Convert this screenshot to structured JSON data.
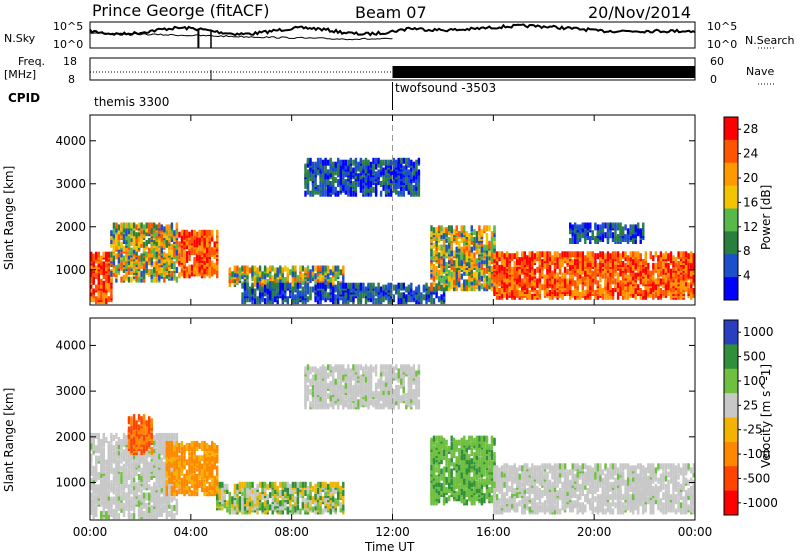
{
  "header": {
    "station": "Prince George (fitACF)",
    "beam": "Beam 07",
    "date": "20/Nov/2014"
  },
  "top_panels": {
    "nsky_label": "N.Sky",
    "nsearch_label": "N.Search",
    "nsky_ticks": [
      "10^5",
      "10^0"
    ],
    "nsearch_ticks": [
      "10^5",
      "10^0"
    ],
    "freq_label_line1": "Freq.",
    "freq_label_line2": "[MHz]",
    "freq_ticks": [
      "18",
      "8"
    ],
    "nave_label": "Nave",
    "nave_ticks": [
      "60",
      "0"
    ],
    "cpid_label": "CPID",
    "cpid_segments": [
      {
        "name": "themis 3300",
        "start_hour": 0,
        "end_hour": 12
      },
      {
        "name": "twofsound -3503",
        "start_hour": 12,
        "end_hour": 24
      }
    ]
  },
  "colors": {
    "power_scale": [
      "#0000ff",
      "#1b4fcc",
      "#2a7f3f",
      "#58b84a",
      "#f3c400",
      "#ff9900",
      "#ff5500",
      "#ff0000"
    ],
    "velocity_scale": [
      "#2a3fbf",
      "#2f8f3a",
      "#6fbf40",
      "#c8c8c8",
      "#f2b400",
      "#ff8800",
      "#ff4400",
      "#ff0000"
    ]
  },
  "chart_data": [
    {
      "type": "heatmap",
      "title": "Power",
      "xlabel": "",
      "ylabel": "Slant Range [km]",
      "xlim": [
        0,
        24
      ],
      "ylim": [
        180,
        4600
      ],
      "x_ticks": [
        "00:00",
        "04:00",
        "08:00",
        "12:00",
        "16:00",
        "20:00",
        "00:00"
      ],
      "y_ticks": [
        "1000",
        "2000",
        "3000",
        "4000"
      ],
      "colorbar_label": "Power [dB]",
      "colorbar_ticks": [
        "4",
        "8",
        "12",
        "16",
        "20",
        "24",
        "28"
      ],
      "colorbar_range": [
        0,
        30
      ],
      "echo_regions": [
        {
          "start_hour": 0.0,
          "end_hour": 0.8,
          "range_min": 200,
          "range_max": 1300,
          "level": "high"
        },
        {
          "start_hour": 0.8,
          "end_hour": 3.5,
          "range_min": 700,
          "range_max": 2000,
          "level": "medium"
        },
        {
          "start_hour": 3.5,
          "end_hour": 5.0,
          "range_min": 800,
          "range_max": 1800,
          "level": "high"
        },
        {
          "start_hour": 5.5,
          "end_hour": 10.0,
          "range_min": 600,
          "range_max": 1000,
          "level": "medium"
        },
        {
          "start_hour": 8.5,
          "end_hour": 13.0,
          "range_min": 2700,
          "range_max": 3500,
          "level": "low"
        },
        {
          "start_hour": 6.0,
          "end_hour": 14.0,
          "range_min": 200,
          "range_max": 600,
          "level": "low"
        },
        {
          "start_hour": 13.5,
          "end_hour": 16.0,
          "range_min": 500,
          "range_max": 1900,
          "level": "medium"
        },
        {
          "start_hour": 16.0,
          "end_hour": 24.0,
          "range_min": 300,
          "range_max": 1300,
          "level": "high"
        },
        {
          "start_hour": 19.0,
          "end_hour": 22.0,
          "range_min": 1600,
          "range_max": 2000,
          "level": "low"
        }
      ]
    },
    {
      "type": "heatmap",
      "title": "Velocity",
      "xlabel": "Time UT",
      "ylabel": "Slant Range [km]",
      "xlim": [
        0,
        24
      ],
      "ylim": [
        180,
        4600
      ],
      "x_ticks": [
        "00:00",
        "04:00",
        "08:00",
        "12:00",
        "16:00",
        "20:00",
        "00:00"
      ],
      "y_ticks": [
        "1000",
        "2000",
        "3000",
        "4000"
      ],
      "colorbar_label": "Velocity [m s^-1]",
      "colorbar_ticks": [
        "1000",
        "500",
        "100",
        "25",
        "-25",
        "-100",
        "-500",
        "-1000"
      ],
      "echo_regions": [
        {
          "start_hour": 0.0,
          "end_hour": 3.5,
          "range_min": 200,
          "range_max": 2000,
          "level": "ground"
        },
        {
          "start_hour": 1.5,
          "end_hour": 2.5,
          "range_min": 1600,
          "range_max": 2400,
          "level": "away_fast"
        },
        {
          "start_hour": 3.0,
          "end_hour": 5.0,
          "range_min": 700,
          "range_max": 1800,
          "level": "away"
        },
        {
          "start_hour": 5.0,
          "end_hour": 10.0,
          "range_min": 300,
          "range_max": 900,
          "level": "mixed"
        },
        {
          "start_hour": 8.5,
          "end_hour": 13.0,
          "range_min": 2600,
          "range_max": 3500,
          "level": "ground"
        },
        {
          "start_hour": 13.5,
          "end_hour": 16.0,
          "range_min": 500,
          "range_max": 1900,
          "level": "toward"
        },
        {
          "start_hour": 16.0,
          "end_hour": 24.0,
          "range_min": 300,
          "range_max": 1300,
          "level": "ground"
        }
      ]
    }
  ]
}
